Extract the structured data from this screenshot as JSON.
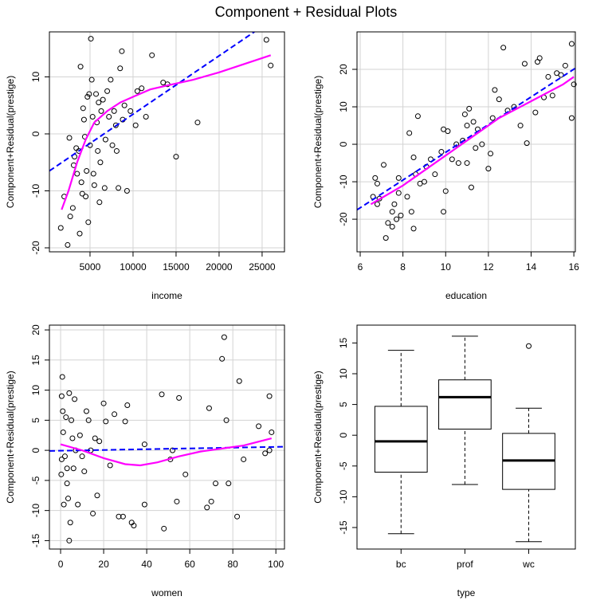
{
  "title": "Component + Residual Plots",
  "chart_data": [
    {
      "type": "scatter",
      "xlabel": "income",
      "ylabel": "Component+Residual(prestige)",
      "x": [
        1600,
        2000,
        2400,
        2600,
        2700,
        3000,
        3100,
        3200,
        3400,
        3500,
        3700,
        3800,
        3900,
        4000,
        4100,
        4200,
        4300,
        4400,
        4500,
        4600,
        4700,
        4800,
        4900,
        5000,
        5100,
        5200,
        5300,
        5400,
        5500,
        5700,
        5800,
        5900,
        6000,
        6100,
        6200,
        6300,
        6500,
        6700,
        6800,
        7000,
        7200,
        7400,
        7600,
        7800,
        8000,
        8100,
        8300,
        8500,
        8700,
        8800,
        9000,
        9300,
        9700,
        10300,
        10500,
        11000,
        11500,
        12200,
        13500,
        14000,
        15000,
        17500,
        25500,
        26000
      ],
      "values": [
        -16.5,
        -11,
        -19.5,
        -0.7,
        -14.5,
        -13,
        -5.5,
        -4,
        -2.5,
        -7,
        -3,
        -17.5,
        11.8,
        -8.5,
        -10.5,
        4.5,
        2.5,
        -0.5,
        -11,
        -6.5,
        6.5,
        -15.5,
        7,
        -2,
        16.7,
        9.5,
        3,
        -7,
        -9,
        7,
        2,
        -3,
        5.5,
        -12,
        -5,
        4,
        6,
        -9.5,
        -1,
        7.5,
        3,
        9.5,
        -2,
        4,
        1.5,
        -3,
        -9.5,
        11.5,
        14.5,
        2.5,
        5,
        -10,
        4,
        1.5,
        7.5,
        8,
        3,
        13.8,
        9,
        8.7,
        -4,
        2,
        16.5,
        12
      ],
      "fit": {
        "color": "#0000ff",
        "x": [
          280,
          24100
        ],
        "values": [
          -6.5,
          17.9
        ]
      },
      "smooth": {
        "color": "#ff00ff",
        "x": [
          1700,
          2500,
          3500,
          4500,
          5500,
          7000,
          8500,
          10000,
          12000,
          14000,
          17000,
          20000,
          23000,
          26000
        ],
        "values": [
          -13.3,
          -10,
          -5,
          -1,
          2,
          4,
          5.5,
          6.5,
          7.8,
          8.5,
          9.5,
          10.8,
          12.3,
          13.8
        ]
      },
      "xlim": [
        280,
        27600
      ],
      "ylim": [
        -20.7,
        17.9
      ],
      "xticks": [
        5000,
        10000,
        15000,
        20000,
        25000
      ],
      "yticks": [
        -20,
        -10,
        0,
        10
      ],
      "grid": true
    },
    {
      "type": "scatter",
      "xlabel": "education",
      "ylabel": "Component+Residual(prestige)",
      "x": [
        6.6,
        6.7,
        6.8,
        6.8,
        6.9,
        7.1,
        7.2,
        7.3,
        7.5,
        7.5,
        7.6,
        7.7,
        7.8,
        7.8,
        7.9,
        8.2,
        8.3,
        8.4,
        8.5,
        8.5,
        8.6,
        8.7,
        8.8,
        9,
        9.1,
        9.3,
        9.5,
        9.8,
        9.9,
        9.9,
        10,
        10.1,
        10.3,
        10.5,
        10.6,
        10.8,
        10.9,
        11,
        11,
        11.1,
        11.2,
        11.3,
        11.4,
        11.5,
        11.7,
        12,
        12.1,
        12.2,
        12.3,
        12.5,
        12.7,
        12.9,
        13.2,
        13.5,
        13.7,
        13.8,
        14.2,
        14.3,
        14.4,
        14.6,
        14.8,
        15,
        15.2,
        15.4,
        15.6,
        15.9,
        15.9,
        16
      ],
      "values": [
        -14,
        -9,
        -16,
        -10.5,
        -14.5,
        -5.5,
        -25,
        -21,
        -18,
        -22,
        -16,
        -20,
        -13,
        -9,
        -19,
        -14,
        3,
        -18,
        -22.5,
        -3.5,
        -8,
        7.5,
        -10.5,
        -10,
        -6,
        -4,
        -8,
        -2,
        4,
        -18,
        -12.5,
        3.5,
        -4,
        0,
        -5,
        1,
        8,
        5,
        -5,
        9.5,
        -11.5,
        6,
        -1,
        4,
        0,
        -6.5,
        -2.5,
        7,
        14.5,
        12,
        25.8,
        9,
        10,
        5,
        21.5,
        0.3,
        8.5,
        22,
        23,
        12.5,
        18,
        13,
        19,
        18.5,
        21,
        26.8,
        7,
        16
      ],
      "fit": {
        "color": "#0000ff",
        "x": [
          5.85,
          16.07
        ],
        "values": [
          -17.5,
          20.3
        ]
      },
      "smooth": {
        "color": "#ff00ff",
        "x": [
          6.5,
          8,
          9.5,
          10.5,
          11.5,
          12.5,
          14,
          15.5,
          16
        ],
        "values": [
          -16,
          -11,
          -5,
          -1,
          3,
          7,
          11.5,
          16,
          18
        ]
      },
      "xlim": [
        5.85,
        16.07
      ],
      "ylim": [
        -28.7,
        30
      ],
      "xticks": [
        6,
        8,
        10,
        12,
        14,
        16
      ],
      "yticks": [
        -20,
        -10,
        0,
        10,
        20
      ],
      "grid": true
    },
    {
      "type": "scatter",
      "xlabel": "women",
      "ylabel": "Component+Residual(prestige)",
      "x": [
        0.5,
        0.8,
        1,
        1.2,
        0.5,
        0.3,
        1.5,
        2,
        2.5,
        3,
        3,
        3.5,
        4,
        4.5,
        4,
        5,
        5.5,
        6,
        6.5,
        7,
        8,
        9,
        10,
        11,
        12,
        13,
        14,
        15,
        16,
        17,
        18,
        20,
        21,
        23,
        25,
        27,
        29,
        30,
        31,
        33,
        34,
        39,
        39,
        47,
        48,
        51,
        52,
        54,
        55,
        58,
        68,
        69,
        70,
        72,
        75,
        76,
        77,
        78,
        82,
        83,
        85,
        92,
        95,
        97,
        98,
        97
      ],
      "values": [
        9,
        12.2,
        6.5,
        3,
        -1.5,
        -4,
        -9,
        -1,
        5.5,
        -3,
        -5.5,
        -8,
        9.5,
        -12,
        -15,
        5,
        2,
        -3,
        8.5,
        0,
        -9,
        2.5,
        -1,
        -3.5,
        6.5,
        5,
        0,
        -10.5,
        2,
        -7.5,
        1.5,
        7.8,
        4.8,
        -2.5,
        6,
        -11,
        -11,
        4.8,
        7.5,
        -12,
        -12.5,
        1,
        -9,
        9.3,
        -13,
        -1.5,
        0,
        -8.5,
        8.7,
        -4,
        -9.5,
        7,
        -8.5,
        -5.5,
        15.2,
        18.8,
        5,
        -5.5,
        -11,
        11.5,
        -1.5,
        4,
        -0.5,
        9,
        3,
        0
      ],
      "fit": {
        "color": "#0000ff",
        "x": [
          -5.2,
          104
        ],
        "values": [
          -0.1,
          0.6
        ]
      },
      "smooth": {
        "color": "#ff00ff",
        "x": [
          0,
          10,
          20,
          30,
          37,
          45,
          55,
          65,
          75,
          85,
          98
        ],
        "values": [
          1,
          0,
          -1.3,
          -2.3,
          -2.5,
          -2,
          -1,
          -0.2,
          0.3,
          0.8,
          2
        ]
      },
      "xlim": [
        -5.2,
        104
      ],
      "ylim": [
        -16.4,
        20.8
      ],
      "xticks": [
        0,
        20,
        40,
        60,
        80,
        100
      ],
      "yticks": [
        -15,
        -10,
        -5,
        0,
        5,
        10,
        15,
        20
      ],
      "grid": true
    },
    {
      "type": "box",
      "xlabel": "type",
      "ylabel": "Component+Residual(prestige)",
      "categories": [
        "bc",
        "prof",
        "wc"
      ],
      "whisker_low": [
        -16,
        -8,
        -17.3
      ],
      "q1": [
        -6,
        1,
        -8.8
      ],
      "median": [
        -1,
        6.2,
        -4.1
      ],
      "q3": [
        4.7,
        9,
        0.3
      ],
      "whisker_high": [
        13.8,
        16.1,
        4.4
      ],
      "outliers": [
        [],
        [],
        [
          14.5
        ]
      ],
      "ylim": [
        -18.5,
        17.9
      ],
      "yticks": [
        -15,
        -10,
        -5,
        0,
        5,
        10,
        15
      ],
      "grid": false
    }
  ]
}
